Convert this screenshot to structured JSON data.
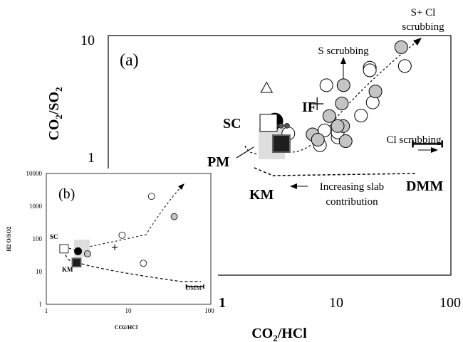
{
  "chart_data": [
    {
      "type": "scatter",
      "panel_label": "(a)",
      "xlabel": "CO2/HCl",
      "ylabel": "CO2/SO2",
      "x_scale": "log",
      "y_scale": "log",
      "xlim": [
        1,
        100
      ],
      "ylim": [
        0.55,
        10
      ],
      "x_ticks": [
        "1",
        "10",
        "100"
      ],
      "y_ticks": [
        "1",
        "10"
      ],
      "series": [
        {
          "marker": "white-circle",
          "points": [
            [
              8.2,
              3.25
            ],
            [
              19.7,
              4.95
            ],
            [
              19.7,
              4.65
            ],
            [
              40,
              5.15
            ],
            [
              20.9,
              2.15
            ],
            [
              16.5,
              1.57
            ],
            [
              10.3,
              0.93
            ],
            [
              10.3,
              1.05
            ],
            [
              7.9,
              1.1
            ],
            [
              7.2,
              0.77
            ],
            [
              3.8,
              1.02
            ]
          ]
        },
        {
          "marker": "grey-circle",
          "points": [
            [
              37.2,
              8.1
            ],
            [
              22.1,
              2.8
            ],
            [
              11.6,
              3.25
            ],
            [
              11.2,
              2.1
            ],
            [
              8.7,
              1.55
            ],
            [
              11.5,
              1.22
            ],
            [
              10.3,
              1.22
            ],
            [
              6.2,
              1.0
            ],
            [
              6.9,
              0.88
            ],
            [
              12.1,
              0.85
            ]
          ]
        },
        {
          "marker": "black-circle",
          "points": [
            [
              2.9,
              1.38
            ]
          ]
        },
        {
          "marker": "small-grey-dots",
          "points": [
            [
              2.35,
              1.23
            ],
            [
              2.7,
              1.23
            ],
            [
              3.0,
              1.23
            ],
            [
              3.3,
              1.23
            ],
            [
              3.7,
              1.23
            ]
          ]
        },
        {
          "marker": "cross",
          "points": [
            [
              6.8,
              2.08
            ]
          ]
        },
        {
          "marker": "triangle",
          "points": [
            [
              2.45,
              3.05
            ]
          ]
        },
        {
          "marker": "white-square",
          "label": "SC",
          "points": [
            [
              2.55,
              1.32
            ]
          ]
        },
        {
          "marker": "black-square",
          "label": "KM",
          "points": [
            [
              3.3,
              0.8
            ]
          ]
        }
      ],
      "DMM_range_x": [
        47,
        85
      ],
      "DMM_y": 0.795,
      "annotations": [
        "S+ Cl",
        "scrubbing",
        "S scrubbing",
        "Cl scrubbing",
        "IF",
        "SC",
        "PM",
        "KM",
        "DMM",
        "Increasing slab",
        "contribution"
      ]
    },
    {
      "type": "scatter",
      "panel_label": "(b)",
      "xlabel": "CO2/HCl",
      "ylabel": "H2 O/SO2",
      "x_scale": "log",
      "y_scale": "log",
      "xlim": [
        1,
        100
      ],
      "ylim": [
        1,
        10000
      ],
      "x_ticks": [
        "1",
        "10",
        "100"
      ],
      "y_ticks": [
        "1",
        "10",
        "100",
        "1000",
        "10000"
      ],
      "series": [
        {
          "marker": "white-circle",
          "points": [
            [
              19.5,
              2000
            ],
            [
              8.5,
              130
            ],
            [
              15.5,
              18
            ]
          ]
        },
        {
          "marker": "grey-circle",
          "points": [
            [
              37,
              480
            ],
            [
              3.2,
              35
            ]
          ]
        },
        {
          "marker": "black-circle",
          "points": [
            [
              2.45,
              42
            ]
          ]
        },
        {
          "marker": "cross",
          "points": [
            [
              6.9,
              55
            ]
          ]
        },
        {
          "marker": "white-square",
          "label": "SC",
          "points": [
            [
              1.65,
              50
            ]
          ]
        },
        {
          "marker": "black-square",
          "label": "KM",
          "points": [
            [
              2.35,
              19
            ]
          ]
        }
      ],
      "DMM_range_x": [
        52,
        85
      ],
      "DMM_y": 3.5,
      "annotations": [
        "SC",
        "KM",
        "DMM"
      ]
    }
  ],
  "labels": {
    "panel_a": "(a)",
    "panel_b": "(b)",
    "main_xlabel_base": "CO",
    "main_xlabel_sub": "2",
    "main_xlabel_tail": "/HCl",
    "main_ylabel_base": "CO",
    "main_ylabel_sub": "2",
    "main_ylabel_mid": "/SO",
    "main_ylabel_sub2": "2",
    "main_xtick_1": "1",
    "main_xtick_10": "10",
    "main_xtick_100": "100",
    "main_ytick_1": "1",
    "main_ytick_10": "10",
    "s_cl_1": "S+ Cl",
    "s_cl_2": "scrubbing",
    "s_scrub": "S scrubbing",
    "cl_scrub": "Cl scrubbing",
    "if_label": "IF",
    "sc_label": "SC",
    "pm_label": "PM",
    "km_label": "KM",
    "dmm_label": "DMM",
    "slab_1": "Increasing slab",
    "slab_2": "contribution",
    "inset_sc": "SC",
    "inset_km": "KM",
    "inset_dmm": "DMM",
    "inset_xlabel": "CO2/HCl",
    "inset_ylabel": "H2 O/SO2",
    "inset_xtick_1": "1",
    "inset_xtick_10": "10",
    "inset_xtick_100": "100",
    "inset_ytick_1": "1",
    "inset_ytick_10": "10",
    "inset_ytick_100": "100",
    "inset_ytick_1000": "1000",
    "inset_ytick_10000": "10000"
  }
}
